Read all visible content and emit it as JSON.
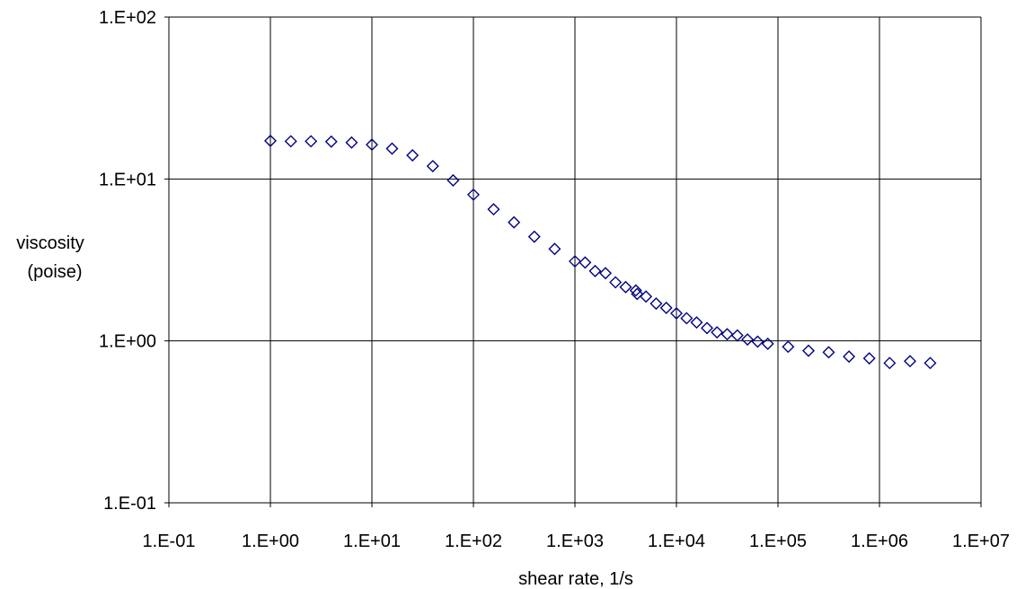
{
  "chart_data": {
    "type": "scatter",
    "title": "",
    "xlabel": "shear rate, 1/s",
    "ylabel_lines": [
      "viscosity",
      "(poise)"
    ],
    "x_scale": "log",
    "y_scale": "log",
    "xlim": [
      0.1,
      10000000
    ],
    "ylim": [
      0.1,
      100
    ],
    "x_ticks": [
      "1.E-01",
      "1.E+00",
      "1.E+01",
      "1.E+02",
      "1.E+03",
      "1.E+04",
      "1.E+05",
      "1.E+06",
      "1.E+07"
    ],
    "y_ticks": [
      "1.E+02",
      "1.E+01",
      "1.E+00",
      "1.E-01"
    ],
    "grid": true,
    "legend": "none",
    "marker": "diamond-open",
    "marker_color": "#000080",
    "series": [
      {
        "x": [
          1.0,
          1.59,
          2.51,
          3.98,
          6.31,
          10.0,
          15.8,
          25.1,
          39.8,
          63.1,
          100,
          158,
          251,
          398,
          631,
          1000,
          1260,
          1580,
          2000,
          2510,
          3160,
          3980,
          4100,
          5010,
          6310,
          7940,
          10000,
          12600,
          15800,
          20000,
          25100,
          31600,
          39800,
          50100,
          63100,
          79400,
          126000,
          200000,
          316000,
          501000,
          794000,
          1260000,
          2000000,
          3160000
        ],
        "y": [
          17.2,
          17.1,
          17.1,
          17.0,
          16.8,
          16.3,
          15.4,
          14.0,
          12.0,
          9.8,
          8.0,
          6.5,
          5.4,
          4.4,
          3.7,
          3.1,
          3.05,
          2.7,
          2.62,
          2.3,
          2.15,
          2.05,
          1.95,
          1.88,
          1.7,
          1.6,
          1.48,
          1.38,
          1.3,
          1.2,
          1.13,
          1.1,
          1.08,
          1.02,
          0.99,
          0.96,
          0.92,
          0.87,
          0.85,
          0.8,
          0.78,
          0.73,
          0.75,
          0.73
        ]
      }
    ]
  }
}
